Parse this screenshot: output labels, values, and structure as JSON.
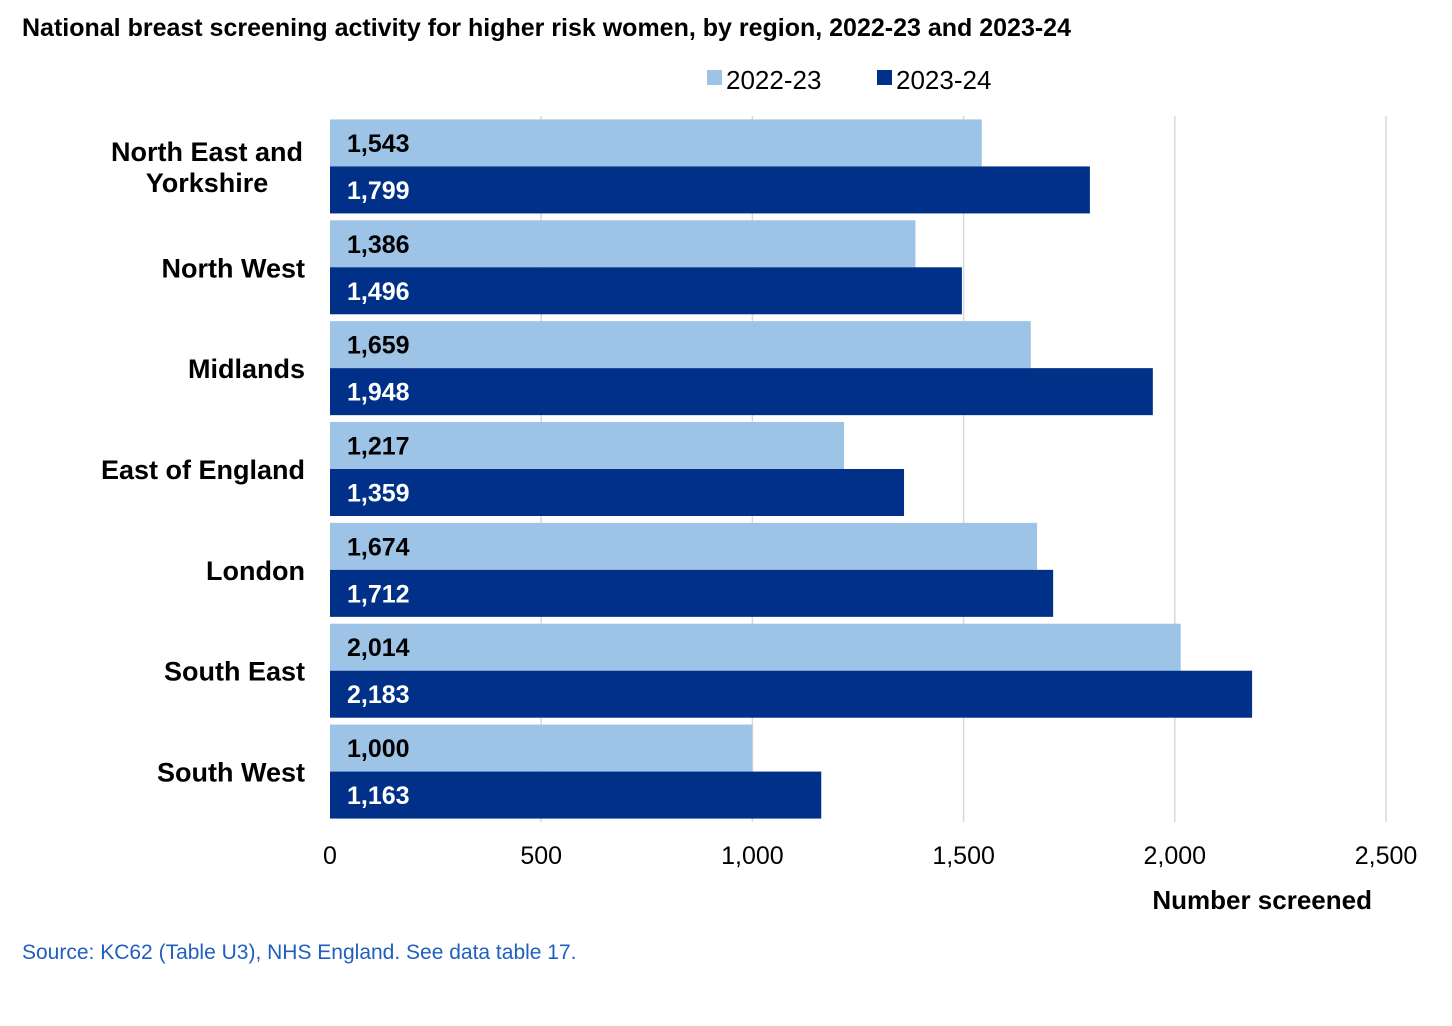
{
  "chart_data": {
    "type": "bar",
    "orientation": "horizontal",
    "title": "National breast screening activity for higher risk women, by region, 2022-23 and 2023-24",
    "categories": [
      "North East and Yorkshire",
      "North West",
      "Midlands",
      "East of England",
      "London",
      "South East",
      "South West"
    ],
    "series": [
      {
        "name": "2022-23",
        "color": "#9dc3e6",
        "label_color": "#000000",
        "values": [
          1543,
          1386,
          1659,
          1217,
          1674,
          2014,
          1000
        ],
        "data_labels": [
          "1,543",
          "1,386",
          "1,659",
          "1,217",
          "1,674",
          "2,014",
          "1,000"
        ]
      },
      {
        "name": "2023-24",
        "color": "#003087",
        "label_color": "#ffffff",
        "values": [
          1799,
          1496,
          1948,
          1359,
          1712,
          2183,
          1163
        ],
        "data_labels": [
          "1,799",
          "1,496",
          "1,948",
          "1,359",
          "1,712",
          "2,183",
          "1,163"
        ]
      }
    ],
    "xlabel": "Number screened",
    "ylabel": "",
    "xlim": [
      0,
      2500
    ],
    "x_ticks": [
      0,
      500,
      1000,
      1500,
      2000,
      2500
    ],
    "x_tick_labels": [
      "0",
      "500",
      "1,000",
      "1,500",
      "2,000",
      "2,500"
    ],
    "grid": true,
    "legend_position": "top-right"
  },
  "source": "Source: KC62 (Table U3), NHS England. See data table 17."
}
